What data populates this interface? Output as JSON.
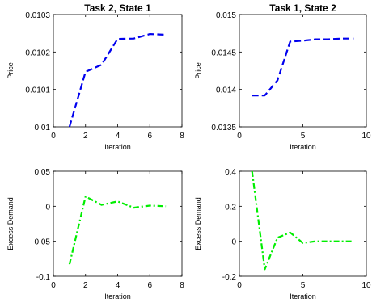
{
  "colors": {
    "price_line": "#0000ee",
    "demand_line": "#00ee00",
    "axes": "#000000"
  },
  "chart_data": [
    {
      "type": "line",
      "title": "Task 2, State 1",
      "xlabel": "Iteration",
      "ylabel": "Price",
      "xlim": [
        0,
        8
      ],
      "ylim": [
        0.01,
        0.0103
      ],
      "xticks": [
        0,
        2,
        4,
        6,
        8
      ],
      "xtick_labels": [
        "0",
        "2",
        "4",
        "6",
        "8"
      ],
      "yticks": [
        0.01,
        0.0101,
        0.0102,
        0.0103
      ],
      "ytick_labels": [
        "0.01",
        "0.0101",
        "0.0102",
        "0.0103"
      ],
      "line_style": "dashed",
      "color": "#0000ee",
      "grid": false,
      "series": [
        {
          "x": [
            1,
            2,
            3,
            4,
            5,
            6,
            7
          ],
          "y": [
            0.01,
            0.010147,
            0.010166,
            0.010235,
            0.010236,
            0.010248,
            0.010246
          ]
        }
      ]
    },
    {
      "type": "line",
      "title": "Task 1, State 2",
      "xlabel": "Iteration",
      "ylabel": "Price",
      "xlim": [
        0,
        10
      ],
      "ylim": [
        0.0135,
        0.015
      ],
      "xticks": [
        0,
        5,
        10
      ],
      "xtick_labels": [
        "0",
        "5",
        "10"
      ],
      "yticks": [
        0.0135,
        0.014,
        0.0145,
        0.015
      ],
      "ytick_labels": [
        "0.0135",
        "0.014",
        "0.0145",
        "0.015"
      ],
      "line_style": "dashed",
      "color": "#0000ee",
      "grid": false,
      "series": [
        {
          "x": [
            1,
            2,
            3,
            4,
            5,
            6,
            7,
            8,
            9
          ],
          "y": [
            0.01392,
            0.01392,
            0.01412,
            0.01464,
            0.01465,
            0.01467,
            0.01467,
            0.01468,
            0.01468
          ]
        }
      ]
    },
    {
      "type": "line",
      "title": "",
      "xlabel": "Iteration",
      "ylabel": "Excess Demand",
      "xlim": [
        0,
        8
      ],
      "ylim": [
        -0.1,
        0.05
      ],
      "xticks": [
        0,
        2,
        4,
        6,
        8
      ],
      "xtick_labels": [
        "0",
        "2",
        "4",
        "6",
        "8"
      ],
      "yticks": [
        -0.1,
        -0.05,
        0,
        0.05
      ],
      "ytick_labels": [
        "-0.1",
        "-0.05",
        "0",
        "0.05"
      ],
      "line_style": "dashdot",
      "color": "#00ee00",
      "grid": false,
      "series": [
        {
          "x": [
            1,
            2,
            3,
            4,
            5,
            6,
            7
          ],
          "y": [
            -0.083,
            0.014,
            0.002,
            0.007,
            -0.002,
            0.001,
            0.0
          ]
        }
      ]
    },
    {
      "type": "line",
      "title": "",
      "xlabel": "Iteration",
      "ylabel": "Excess Demand",
      "xlim": [
        0,
        10
      ],
      "ylim": [
        -0.2,
        0.4
      ],
      "xticks": [
        0,
        5,
        10
      ],
      "xtick_labels": [
        "0",
        "5",
        "10"
      ],
      "yticks": [
        -0.2,
        0,
        0.2,
        0.4
      ],
      "ytick_labels": [
        "-0.2",
        "0",
        "0.2",
        "0.4"
      ],
      "line_style": "dashdot",
      "color": "#00ee00",
      "grid": false,
      "series": [
        {
          "x": [
            1,
            2,
            3,
            4,
            5,
            6,
            7,
            8,
            9
          ],
          "y": [
            0.4,
            -0.16,
            0.02,
            0.05,
            -0.01,
            0.0,
            0.0,
            0.0,
            0.0
          ]
        }
      ]
    }
  ]
}
